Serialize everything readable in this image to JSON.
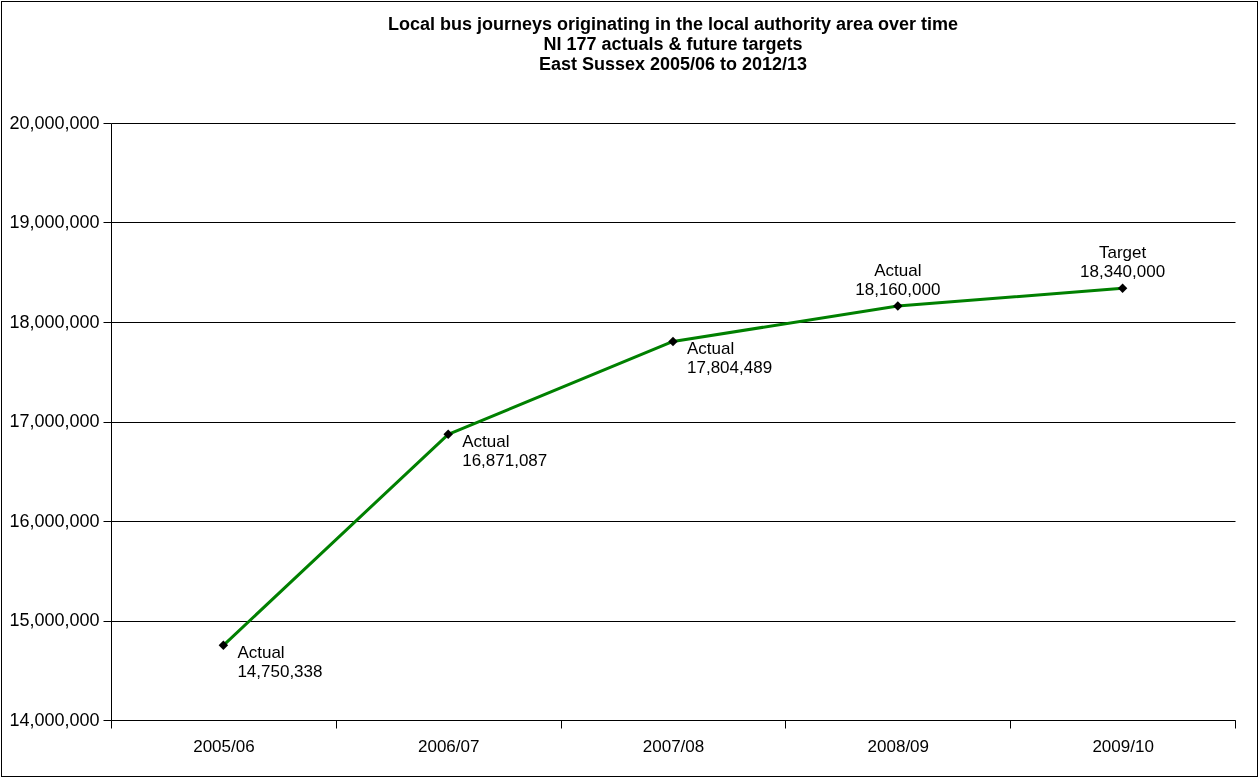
{
  "chart_data": {
    "type": "line",
    "title": "Local bus journeys originating in the local authority area over time\nNI 177 actuals & future targets\nEast Sussex 2005/06 to 2012/13",
    "categories": [
      "2005/06",
      "2006/07",
      "2007/08",
      "2008/09",
      "2009/10"
    ],
    "series": [
      {
        "color": "#008000",
        "values": [
          14750338,
          16871087,
          17804489,
          18160000,
          18340000
        ],
        "value_labels": [
          "Actual\n14,750,338",
          "Actual\n16,871,087",
          "Actual\n17,804,489",
          "Actual\n18,160,000",
          "Target\n18,340,000"
        ]
      }
    ],
    "ylim": [
      14000000,
      20000000
    ],
    "yticks": [
      {
        "value": 14000000,
        "label": "14,000,000"
      },
      {
        "value": 15000000,
        "label": "15,000,000"
      },
      {
        "value": 16000000,
        "label": "16,000,000"
      },
      {
        "value": 17000000,
        "label": "17,000,000"
      },
      {
        "value": 18000000,
        "label": "18,000,000"
      },
      {
        "value": 19000000,
        "label": "19,000,000"
      },
      {
        "value": 20000000,
        "label": "20,000,000"
      }
    ],
    "grid": "y",
    "marker": "diamond"
  }
}
